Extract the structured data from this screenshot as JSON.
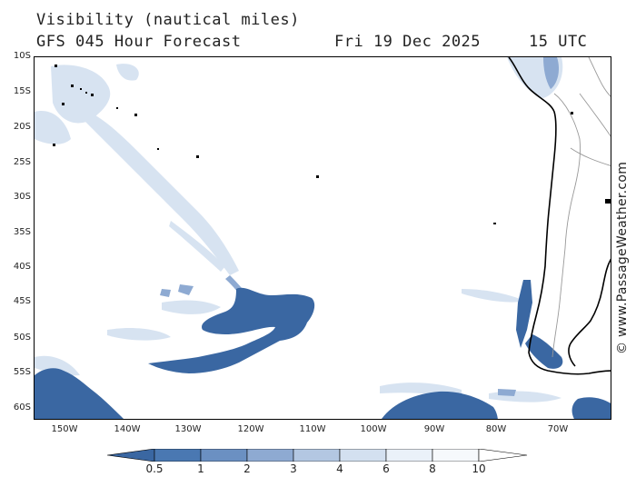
{
  "header": {
    "title": "Visibility (nautical miles)",
    "forecast": "GFS 045 Hour Forecast",
    "date": "Fri 19 Dec 2025",
    "time": "15 UTC"
  },
  "watermark": "© www.PassageWeather.com",
  "axes": {
    "lat_labels": [
      "10S",
      "15S",
      "20S",
      "25S",
      "30S",
      "35S",
      "40S",
      "45S",
      "50S",
      "55S",
      "60S"
    ],
    "lon_labels": [
      "150W",
      "140W",
      "130W",
      "120W",
      "110W",
      "100W",
      "90W",
      "80W",
      "70W"
    ]
  },
  "legend": {
    "labels": [
      "0.5",
      "1",
      "2",
      "3",
      "4",
      "6",
      "8",
      "10"
    ],
    "colors": [
      "#3a67a2",
      "#4a78b2",
      "#6b90c2",
      "#8eaad2",
      "#b3c7e2",
      "#d3e0f0",
      "#eaf1f9",
      "#ffffff"
    ]
  },
  "colors": {
    "low_visibility": "#3a67a2",
    "moderate": "#8eaad2",
    "light": "#d3e0f0",
    "coast": "#000000",
    "borders": "#999999"
  }
}
